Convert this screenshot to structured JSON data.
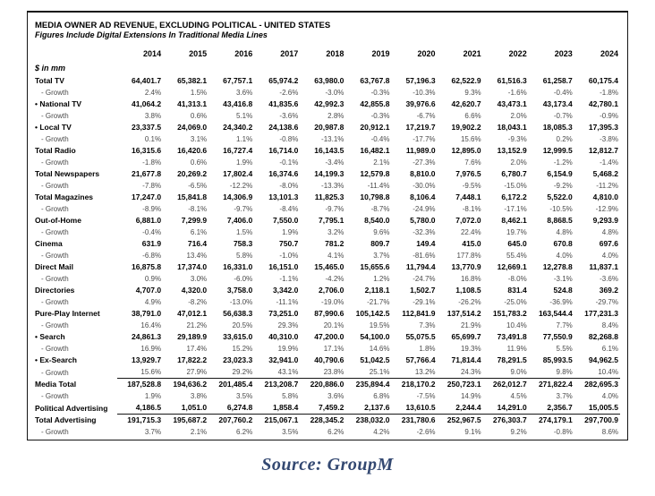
{
  "table": {
    "title": "MEDIA OWNER AD REVENUE, EXCLUDING POLITICAL - UNITED STATES",
    "subtitle": "Figures Include Digital Extensions In Traditional Media Lines",
    "unit_label": "$ in mm",
    "growth_label": "- Growth",
    "years": [
      "2014",
      "2015",
      "2016",
      "2017",
      "2018",
      "2019",
      "2020",
      "2021",
      "2022",
      "2023",
      "2024"
    ],
    "rows": [
      {
        "label": "Total TV",
        "bullet": false,
        "values": [
          "64,401.7",
          "65,382.1",
          "67,757.1",
          "65,974.2",
          "63,980.0",
          "63,767.8",
          "57,196.3",
          "62,522.9",
          "61,516.3",
          "61,258.7",
          "60,175.4"
        ],
        "growth": [
          "2.4%",
          "1.5%",
          "3.6%",
          "-2.6%",
          "-3.0%",
          "-0.3%",
          "-10.3%",
          "9.3%",
          "-1.6%",
          "-0.4%",
          "-1.8%"
        ]
      },
      {
        "label": "National TV",
        "bullet": true,
        "values": [
          "41,064.2",
          "41,313.1",
          "43,416.8",
          "41,835.6",
          "42,992.3",
          "42,855.8",
          "39,976.6",
          "42,620.7",
          "43,473.1",
          "43,173.4",
          "42,780.1"
        ],
        "growth": [
          "3.8%",
          "0.6%",
          "5.1%",
          "-3.6%",
          "2.8%",
          "-0.3%",
          "-6.7%",
          "6.6%",
          "2.0%",
          "-0.7%",
          "-0.9%"
        ]
      },
      {
        "label": "Local TV",
        "bullet": true,
        "values": [
          "23,337.5",
          "24,069.0",
          "24,340.2",
          "24,138.6",
          "20,987.8",
          "20,912.1",
          "17,219.7",
          "19,902.2",
          "18,043.1",
          "18,085.3",
          "17,395.3"
        ],
        "growth": [
          "0.1%",
          "3.1%",
          "1.1%",
          "-0.8%",
          "-13.1%",
          "-0.4%",
          "-17.7%",
          "15.6%",
          "-9.3%",
          "0.2%",
          "-3.8%"
        ]
      },
      {
        "label": "Total Radio",
        "bullet": false,
        "values": [
          "16,315.6",
          "16,420.6",
          "16,727.4",
          "16,714.0",
          "16,143.5",
          "16,482.1",
          "11,989.0",
          "12,895.0",
          "13,152.9",
          "12,999.5",
          "12,812.7"
        ],
        "growth": [
          "-1.8%",
          "0.6%",
          "1.9%",
          "-0.1%",
          "-3.4%",
          "2.1%",
          "-27.3%",
          "7.6%",
          "2.0%",
          "-1.2%",
          "-1.4%"
        ]
      },
      {
        "label": "Total Newspapers",
        "bullet": false,
        "values": [
          "21,677.8",
          "20,269.2",
          "17,802.4",
          "16,374.6",
          "14,199.3",
          "12,579.8",
          "8,810.0",
          "7,976.5",
          "6,780.7",
          "6,154.9",
          "5,468.2"
        ],
        "growth": [
          "-7.8%",
          "-6.5%",
          "-12.2%",
          "-8.0%",
          "-13.3%",
          "-11.4%",
          "-30.0%",
          "-9.5%",
          "-15.0%",
          "-9.2%",
          "-11.2%"
        ]
      },
      {
        "label": "Total Magazines",
        "bullet": false,
        "values": [
          "17,247.0",
          "15,841.8",
          "14,306.9",
          "13,101.3",
          "11,825.3",
          "10,798.8",
          "8,106.4",
          "7,448.1",
          "6,172.2",
          "5,522.0",
          "4,810.0"
        ],
        "growth": [
          "-8.9%",
          "-8.1%",
          "-9.7%",
          "-8.4%",
          "-9.7%",
          "-8.7%",
          "-24.9%",
          "-8.1%",
          "-17.1%",
          "-10.5%",
          "-12.9%"
        ]
      },
      {
        "label": "Out-of-Home",
        "bullet": false,
        "values": [
          "6,881.0",
          "7,299.9",
          "7,406.0",
          "7,550.0",
          "7,795.1",
          "8,540.0",
          "5,780.0",
          "7,072.0",
          "8,462.1",
          "8,868.5",
          "9,293.9"
        ],
        "growth": [
          "-0.4%",
          "6.1%",
          "1.5%",
          "1.9%",
          "3.2%",
          "9.6%",
          "-32.3%",
          "22.4%",
          "19.7%",
          "4.8%",
          "4.8%"
        ]
      },
      {
        "label": "Cinema",
        "bullet": false,
        "values": [
          "631.9",
          "716.4",
          "758.3",
          "750.7",
          "781.2",
          "809.7",
          "149.4",
          "415.0",
          "645.0",
          "670.8",
          "697.6"
        ],
        "growth": [
          "-6.8%",
          "13.4%",
          "5.8%",
          "-1.0%",
          "4.1%",
          "3.7%",
          "-81.6%",
          "177.8%",
          "55.4%",
          "4.0%",
          "4.0%"
        ]
      },
      {
        "label": "Direct Mail",
        "bullet": false,
        "values": [
          "16,875.8",
          "17,374.0",
          "16,331.0",
          "16,151.0",
          "15,465.0",
          "15,655.6",
          "11,794.4",
          "13,770.9",
          "12,669.1",
          "12,278.8",
          "11,837.1"
        ],
        "growth": [
          "0.9%",
          "3.0%",
          "-6.0%",
          "-1.1%",
          "-4.2%",
          "1.2%",
          "-24.7%",
          "16.8%",
          "-8.0%",
          "-3.1%",
          "-3.6%"
        ]
      },
      {
        "label": "Directories",
        "bullet": false,
        "values": [
          "4,707.0",
          "4,320.0",
          "3,758.0",
          "3,342.0",
          "2,706.0",
          "2,118.1",
          "1,502.7",
          "1,108.5",
          "831.4",
          "524.8",
          "369.2"
        ],
        "growth": [
          "4.9%",
          "-8.2%",
          "-13.0%",
          "-11.1%",
          "-19.0%",
          "-21.7%",
          "-29.1%",
          "-26.2%",
          "-25.0%",
          "-36.9%",
          "-29.7%"
        ]
      },
      {
        "label": "Pure-Play Internet",
        "bullet": false,
        "values": [
          "38,791.0",
          "47,012.1",
          "56,638.3",
          "73,251.0",
          "87,990.6",
          "105,142.5",
          "112,841.9",
          "137,514.2",
          "151,783.2",
          "163,544.4",
          "177,231.3"
        ],
        "growth": [
          "16.4%",
          "21.2%",
          "20.5%",
          "29.3%",
          "20.1%",
          "19.5%",
          "7.3%",
          "21.9%",
          "10.4%",
          "7.7%",
          "8.4%"
        ]
      },
      {
        "label": "Search",
        "bullet": true,
        "tight": true,
        "values": [
          "24,861.3",
          "29,189.9",
          "33,615.0",
          "40,310.0",
          "47,200.0",
          "54,100.0",
          "55,075.5",
          "65,699.7",
          "73,491.8",
          "77,550.9",
          "82,268.8"
        ],
        "growth": [
          "16.9%",
          "17.4%",
          "15.2%",
          "19.9%",
          "17.1%",
          "14.6%",
          "1.8%",
          "19.3%",
          "11.9%",
          "5.5%",
          "6.1%"
        ]
      },
      {
        "label": "Ex-Search",
        "bullet": true,
        "tight": true,
        "values": [
          "13,929.7",
          "17,822.2",
          "23,023.3",
          "32,941.0",
          "40,790.6",
          "51,042.5",
          "57,766.4",
          "71,814.4",
          "78,291.5",
          "85,993.5",
          "94,962.5"
        ],
        "growth": [
          "15.6%",
          "27.9%",
          "29.2%",
          "43.1%",
          "23.8%",
          "25.1%",
          "13.2%",
          "24.3%",
          "9.0%",
          "9.8%",
          "10.4%"
        ]
      },
      {
        "label": "Media Total",
        "bullet": false,
        "rule_above": true,
        "values": [
          "187,528.8",
          "194,636.2",
          "201,485.4",
          "213,208.7",
          "220,886.0",
          "235,894.4",
          "218,170.2",
          "250,723.1",
          "262,012.7",
          "271,822.4",
          "282,695.3"
        ],
        "growth": [
          "1.9%",
          "3.8%",
          "3.5%",
          "5.8%",
          "3.6%",
          "6.8%",
          "-7.5%",
          "14.9%",
          "4.5%",
          "3.7%",
          "4.0%"
        ]
      },
      {
        "label": "Political Advertising",
        "bullet": false,
        "values": [
          "4,186.5",
          "1,051.0",
          "6,274.8",
          "1,858.4",
          "7,459.2",
          "2,137.6",
          "13,610.5",
          "2,244.4",
          "14,291.0",
          "2,356.7",
          "15,005.5"
        ],
        "growth": null
      },
      {
        "label": "Total Advertising",
        "bullet": false,
        "rule_above": true,
        "values": [
          "191,715.3",
          "195,687.2",
          "207,760.2",
          "215,067.1",
          "228,345.2",
          "238,032.0",
          "231,780.6",
          "252,967.5",
          "276,303.7",
          "274,179.1",
          "297,700.9"
        ],
        "growth": [
          "3.7%",
          "2.1%",
          "6.2%",
          "3.5%",
          "6.2%",
          "4.2%",
          "-2.6%",
          "9.1%",
          "9.2%",
          "-0.8%",
          "8.6%"
        ]
      }
    ]
  },
  "footer": {
    "source": "Source: GroupM"
  },
  "colors": {
    "border": "#141414",
    "growth_text": "#4a4a4a",
    "source_text": "#334871",
    "background": "#ffffff"
  }
}
